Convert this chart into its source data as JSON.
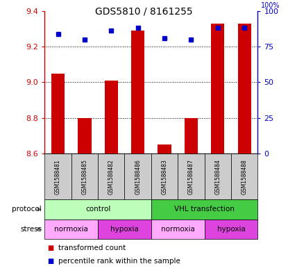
{
  "title": "GDS5810 / 8161255",
  "samples": [
    "GSM1588481",
    "GSM1588485",
    "GSM1588482",
    "GSM1588486",
    "GSM1588483",
    "GSM1588487",
    "GSM1588484",
    "GSM1588488"
  ],
  "transformed_counts": [
    9.05,
    8.8,
    9.01,
    9.29,
    8.65,
    8.8,
    9.33,
    9.33
  ],
  "percentile_ranks": [
    84,
    80,
    86,
    88,
    81,
    80,
    88,
    88
  ],
  "ymin": 8.6,
  "ymax": 9.4,
  "yticks": [
    8.6,
    8.8,
    9.0,
    9.2,
    9.4
  ],
  "right_yticks": [
    0,
    25,
    50,
    75,
    100
  ],
  "bar_color": "#cc0000",
  "dot_color": "#0000cc",
  "protocol_groups": [
    {
      "label": "control",
      "start": 0,
      "end": 4,
      "color": "#bbffbb"
    },
    {
      "label": "VHL transfection",
      "start": 4,
      "end": 8,
      "color": "#44cc44"
    }
  ],
  "stress_groups": [
    {
      "label": "normoxia",
      "start": 0,
      "end": 2,
      "color": "#ffaaff"
    },
    {
      "label": "hypoxia",
      "start": 2,
      "end": 4,
      "color": "#dd44dd"
    },
    {
      "label": "normoxia",
      "start": 4,
      "end": 6,
      "color": "#ffaaff"
    },
    {
      "label": "hypoxia",
      "start": 6,
      "end": 8,
      "color": "#dd44dd"
    }
  ],
  "bar_color_hex": "#cc0000",
  "dot_color_hex": "#0000cc",
  "left_axis_color": "#cc0000",
  "right_axis_color": "#0000cc",
  "sample_box_color": "#cccccc",
  "title_fontsize": 10,
  "tick_fontsize": 8,
  "label_fontsize": 7.5,
  "legend_fontsize": 7.5
}
